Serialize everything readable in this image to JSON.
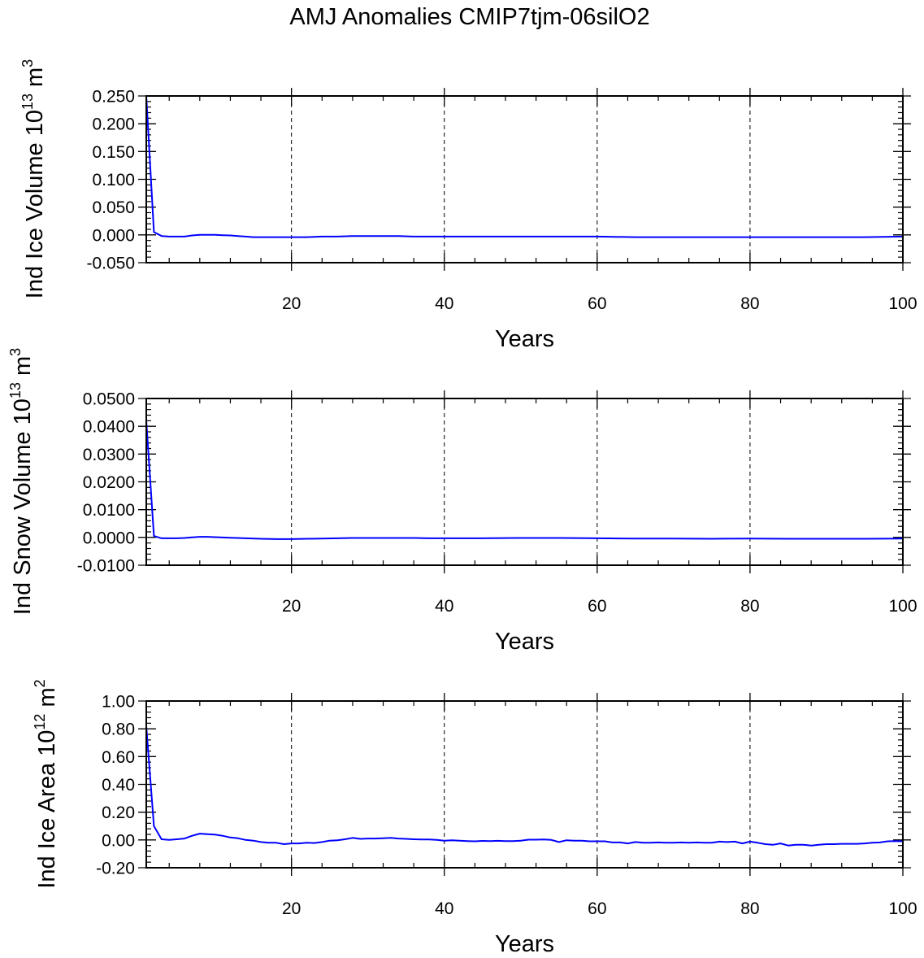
{
  "figure": {
    "title": "AMJ Anomalies CMIP7tjm-06silO2"
  },
  "chart_data": [
    {
      "type": "line",
      "ylabel_main": "Ind Ice Volume 10",
      "ylabel_exp": "13",
      "ylabel_unit": "m",
      "ylabel_unit_exp": "3",
      "xlabel": "Years",
      "xlim": [
        1,
        100
      ],
      "ylim": [
        -0.05,
        0.25
      ],
      "xticks": [
        20,
        40,
        60,
        80,
        100
      ],
      "xtick_labels": [
        "20",
        "40",
        "60",
        "80",
        "100"
      ],
      "yticks": [
        -0.05,
        0,
        0.05,
        0.1,
        0.15,
        0.2,
        0.25
      ],
      "ytick_labels": [
        "-0.050",
        "0.000",
        "0.050",
        "0.100",
        "0.150",
        "0.200",
        "0.250"
      ],
      "grid": "dashed vertical at major x ticks",
      "series": [
        {
          "color": "#0000ff",
          "x": [
            1,
            2,
            3,
            4,
            5,
            6,
            7,
            8,
            9,
            10,
            11,
            12,
            13,
            14,
            15,
            16,
            17,
            18,
            19,
            20,
            22,
            24,
            26,
            28,
            30,
            32,
            34,
            36,
            38,
            40,
            45,
            50,
            55,
            60,
            65,
            70,
            75,
            80,
            85,
            90,
            95,
            100
          ],
          "y": [
            0.25,
            0.005,
            -0.002,
            -0.003,
            -0.003,
            -0.003,
            -0.001,
            0.0,
            0.0,
            0.0,
            -0.0005,
            -0.001,
            -0.002,
            -0.003,
            -0.004,
            -0.004,
            -0.004,
            -0.004,
            -0.004,
            -0.004,
            -0.004,
            -0.003,
            -0.003,
            -0.002,
            -0.002,
            -0.002,
            -0.002,
            -0.003,
            -0.003,
            -0.003,
            -0.003,
            -0.003,
            -0.003,
            -0.003,
            -0.004,
            -0.004,
            -0.004,
            -0.004,
            -0.004,
            -0.004,
            -0.004,
            -0.003
          ]
        }
      ]
    },
    {
      "type": "line",
      "ylabel_main": "Ind Snow Volume 10",
      "ylabel_exp": "13",
      "ylabel_unit": "m",
      "ylabel_unit_exp": "3",
      "xlabel": "Years",
      "xlim": [
        1,
        100
      ],
      "ylim": [
        -0.01,
        0.05
      ],
      "xticks": [
        20,
        40,
        60,
        80,
        100
      ],
      "xtick_labels": [
        "20",
        "40",
        "60",
        "80",
        "100"
      ],
      "yticks": [
        -0.01,
        0,
        0.01,
        0.02,
        0.03,
        0.04,
        0.05
      ],
      "ytick_labels": [
        "-0.0100",
        "0.0000",
        "0.0100",
        "0.0200",
        "0.0300",
        "0.0400",
        "0.0500"
      ],
      "grid": "dashed vertical at major x ticks",
      "series": [
        {
          "color": "#0000ff",
          "x": [
            1,
            2,
            3,
            4,
            5,
            6,
            7,
            8,
            9,
            10,
            12,
            14,
            16,
            18,
            20,
            22,
            24,
            26,
            28,
            30,
            32,
            34,
            36,
            38,
            40,
            45,
            50,
            55,
            60,
            65,
            70,
            75,
            80,
            85,
            90,
            95,
            100
          ],
          "y": [
            0.042,
            0.0005,
            -0.0003,
            -0.0003,
            -0.0003,
            -0.0002,
            0.0,
            0.0002,
            0.0002,
            0.0001,
            -0.0001,
            -0.0003,
            -0.0005,
            -0.0006,
            -0.0006,
            -0.0005,
            -0.0004,
            -0.0003,
            -0.0002,
            -0.0002,
            -0.0002,
            -0.0002,
            -0.0002,
            -0.0003,
            -0.0003,
            -0.0003,
            -0.0002,
            -0.0002,
            -0.0003,
            -0.0004,
            -0.0004,
            -0.0005,
            -0.0004,
            -0.0005,
            -0.0005,
            -0.0005,
            -0.0004
          ]
        }
      ]
    },
    {
      "type": "line",
      "ylabel_main": "Ind Ice Area 10",
      "ylabel_exp": "12",
      "ylabel_unit": "m",
      "ylabel_unit_exp": "2",
      "xlabel": "Years",
      "xlim": [
        1,
        100
      ],
      "ylim": [
        -0.2,
        1.0
      ],
      "xticks": [
        20,
        40,
        60,
        80,
        100
      ],
      "xtick_labels": [
        "20",
        "40",
        "60",
        "80",
        "100"
      ],
      "yticks": [
        -0.2,
        0,
        0.2,
        0.4,
        0.6,
        0.8,
        1.0
      ],
      "ytick_labels": [
        "-0.20",
        "0.00",
        "0.20",
        "0.40",
        "0.60",
        "0.80",
        "1.00"
      ],
      "grid": "dashed vertical at major x ticks",
      "series": [
        {
          "color": "#0000ff",
          "x": [
            1,
            2,
            3,
            4,
            5,
            6,
            7,
            8,
            9,
            10,
            11,
            12,
            13,
            14,
            15,
            16,
            17,
            18,
            19,
            20,
            21,
            22,
            23,
            24,
            25,
            26,
            27,
            28,
            29,
            30,
            31,
            32,
            33,
            34,
            35,
            36,
            37,
            38,
            39,
            40,
            41,
            42,
            43,
            44,
            45,
            46,
            47,
            48,
            49,
            50,
            51,
            52,
            53,
            54,
            55,
            56,
            57,
            58,
            59,
            60,
            61,
            62,
            63,
            64,
            65,
            66,
            67,
            68,
            69,
            70,
            71,
            72,
            73,
            74,
            75,
            76,
            77,
            78,
            79,
            80,
            81,
            82,
            83,
            84,
            85,
            86,
            87,
            88,
            89,
            90,
            91,
            92,
            93,
            94,
            95,
            96,
            97,
            98,
            99,
            100
          ],
          "y": [
            0.82,
            0.1,
            0.005,
            0.0,
            0.005,
            0.01,
            0.03,
            0.045,
            0.042,
            0.038,
            0.03,
            0.018,
            0.012,
            0.0,
            -0.005,
            -0.015,
            -0.02,
            -0.02,
            -0.03,
            -0.025,
            -0.025,
            -0.02,
            -0.022,
            -0.015,
            -0.005,
            -0.002,
            0.005,
            0.015,
            0.008,
            0.01,
            0.01,
            0.012,
            0.015,
            0.01,
            0.008,
            0.005,
            0.003,
            0.003,
            0.0,
            -0.005,
            -0.003,
            -0.005,
            -0.008,
            -0.01,
            -0.007,
            -0.008,
            -0.006,
            -0.008,
            -0.008,
            -0.005,
            0.002,
            0.002,
            0.003,
            0.0,
            -0.015,
            -0.002,
            -0.005,
            -0.005,
            -0.01,
            -0.01,
            -0.01,
            -0.018,
            -0.018,
            -0.025,
            -0.015,
            -0.02,
            -0.02,
            -0.018,
            -0.02,
            -0.02,
            -0.018,
            -0.02,
            -0.018,
            -0.02,
            -0.02,
            -0.012,
            -0.015,
            -0.012,
            -0.025,
            -0.012,
            -0.02,
            -0.03,
            -0.035,
            -0.025,
            -0.04,
            -0.035,
            -0.035,
            -0.04,
            -0.035,
            -0.03,
            -0.03,
            -0.028,
            -0.028,
            -0.028,
            -0.025,
            -0.02,
            -0.018,
            -0.01,
            -0.008,
            -0.01
          ]
        }
      ]
    }
  ]
}
